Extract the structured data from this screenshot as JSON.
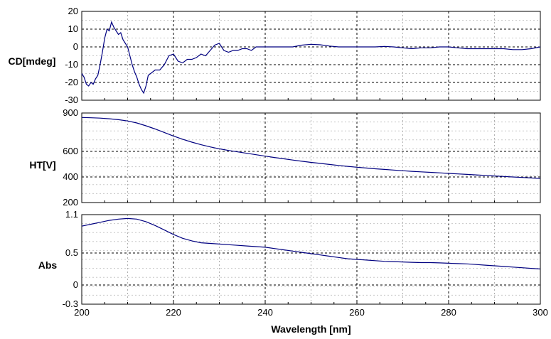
{
  "chart_data": [
    {
      "type": "line",
      "ylabel": "CD[mdeg]",
      "ylim": [
        -30,
        20
      ],
      "yticks": [
        20,
        10,
        0,
        -10,
        -20,
        -30
      ],
      "xlim": [
        200,
        300
      ],
      "grid": true,
      "series_color": "#000080",
      "x": [
        200,
        200.5,
        201,
        201.5,
        202,
        202.5,
        203,
        203.5,
        204,
        204.5,
        205,
        205.5,
        206,
        206.5,
        207,
        207.5,
        208,
        208.5,
        209,
        209.5,
        210,
        210.5,
        211,
        211.5,
        212,
        212.5,
        213,
        213.5,
        214,
        214.5,
        215,
        216,
        217,
        218,
        219,
        220,
        221,
        222,
        223,
        224,
        225,
        226,
        227,
        228,
        229,
        230,
        231,
        232,
        233,
        234,
        235,
        236,
        237,
        238,
        239,
        240,
        242,
        244,
        246,
        248,
        250,
        252,
        254,
        256,
        258,
        260,
        262,
        264,
        266,
        268,
        270,
        272,
        274,
        276,
        278,
        280,
        282,
        284,
        286,
        288,
        290,
        292,
        294,
        296,
        298,
        300
      ],
      "y": [
        -15,
        -17,
        -21,
        -22,
        -20,
        -21,
        -18,
        -16,
        -10,
        -3,
        5,
        10,
        9,
        14,
        11,
        9,
        7,
        8,
        4,
        2,
        0,
        -5,
        -10,
        -14,
        -17,
        -21,
        -24,
        -26,
        -22,
        -16,
        -15,
        -13,
        -13,
        -10,
        -5,
        -4,
        -8,
        -9,
        -7,
        -7,
        -6,
        -4,
        -5,
        -2,
        1,
        2,
        -2,
        -3,
        -2,
        -2,
        -1,
        -1,
        -2,
        0,
        0,
        0,
        0,
        0,
        0,
        1,
        1.5,
        1.2,
        0.5,
        0,
        0,
        0,
        0,
        0,
        0.3,
        0,
        -0.5,
        -1,
        -0.5,
        -0.5,
        0,
        0,
        -0.5,
        -1,
        -1,
        -1,
        -1,
        -1,
        -1.5,
        -1.5,
        -1,
        0
      ]
    },
    {
      "type": "line",
      "ylabel": "HT[V]",
      "ylim": [
        200,
        900
      ],
      "yticks": [
        900,
        600,
        400,
        200
      ],
      "xlim": [
        200,
        300
      ],
      "grid": true,
      "series_color": "#000080",
      "x": [
        200,
        202,
        204,
        206,
        208,
        210,
        212,
        214,
        216,
        218,
        220,
        222,
        224,
        226,
        228,
        230,
        232,
        234,
        236,
        238,
        240,
        242,
        244,
        246,
        248,
        250,
        252,
        254,
        256,
        258,
        260,
        262,
        264,
        266,
        268,
        270,
        272,
        274,
        276,
        278,
        280,
        282,
        284,
        286,
        288,
        290,
        292,
        294,
        296,
        298,
        300
      ],
      "y": [
        865,
        863,
        860,
        855,
        848,
        838,
        822,
        800,
        775,
        748,
        720,
        695,
        672,
        652,
        635,
        620,
        607,
        596,
        585,
        574,
        563,
        552,
        542,
        532,
        523,
        514,
        506,
        498,
        490,
        483,
        476,
        470,
        464,
        459,
        454,
        449,
        444,
        440,
        436,
        432,
        428,
        424,
        420,
        416,
        412,
        408,
        404,
        400,
        396,
        392,
        388
      ]
    },
    {
      "type": "line",
      "ylabel": "Abs",
      "xlabel": "Wavelength [nm]",
      "ylim": [
        -0.3,
        1.1
      ],
      "yticks": [
        1.1,
        0.5,
        0,
        -0.3
      ],
      "xlim": [
        200,
        300
      ],
      "xticks": [
        200,
        220,
        240,
        260,
        280,
        300
      ],
      "grid": true,
      "series_color": "#000080",
      "x": [
        200,
        202,
        204,
        206,
        208,
        210,
        212,
        214,
        216,
        218,
        220,
        222,
        224,
        226,
        228,
        230,
        232,
        234,
        236,
        238,
        240,
        242,
        244,
        246,
        248,
        250,
        252,
        254,
        256,
        258,
        260,
        262,
        264,
        266,
        268,
        270,
        272,
        274,
        276,
        278,
        280,
        282,
        284,
        286,
        288,
        290,
        292,
        294,
        296,
        298,
        300
      ],
      "y": [
        0.92,
        0.95,
        0.98,
        1.01,
        1.03,
        1.04,
        1.03,
        0.99,
        0.93,
        0.86,
        0.79,
        0.73,
        0.69,
        0.66,
        0.65,
        0.64,
        0.63,
        0.62,
        0.61,
        0.6,
        0.59,
        0.57,
        0.55,
        0.53,
        0.51,
        0.49,
        0.47,
        0.45,
        0.43,
        0.41,
        0.4,
        0.39,
        0.38,
        0.37,
        0.365,
        0.36,
        0.355,
        0.35,
        0.35,
        0.345,
        0.34,
        0.335,
        0.33,
        0.32,
        0.31,
        0.3,
        0.29,
        0.28,
        0.27,
        0.26,
        0.25
      ]
    }
  ]
}
